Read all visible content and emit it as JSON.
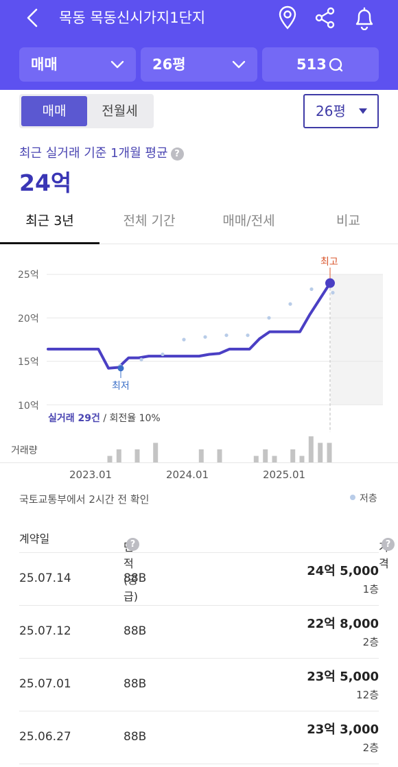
{
  "header": {
    "title": "목동 목동신시가지1단지",
    "filters": [
      {
        "label": "매매"
      },
      {
        "label": "26평"
      },
      {
        "label": "513"
      }
    ]
  },
  "toggle": {
    "active": "매매",
    "inactive": "전월세"
  },
  "size_select": "26평",
  "summary": {
    "label": "최근 실거래 기준 1개월 평균",
    "value": "24억"
  },
  "tabs": [
    "최근 3년",
    "전체 기간",
    "매매/전세",
    "비교"
  ],
  "chart_data": {
    "type": "line",
    "y_ticks": [
      "25억",
      "20억",
      "15억",
      "10억"
    ],
    "ylim": [
      10,
      25
    ],
    "x_ticks": [
      "2023.01",
      "2024.01",
      "2025.01"
    ],
    "markers": {
      "high_label": "최고",
      "low_label": "최저"
    },
    "note_prefix": "실거래 29건",
    "note_suffix": "/ 회전율 10%",
    "volume_label": "거래량",
    "series": [
      {
        "values": [
          16.4,
          16.4,
          16.4,
          16.4,
          16.4,
          16.4,
          14.2,
          14.3,
          15.4,
          15.4,
          15.6,
          15.6,
          15.6,
          15.6,
          15.6,
          15.6,
          15.8,
          15.9,
          16.4,
          16.4,
          16.4,
          17.6,
          18.4,
          18.4,
          18.4,
          18.4,
          20.4,
          22.2,
          24.0
        ]
      }
    ],
    "points": [
      14.5,
      15.2,
      15.8,
      17.5,
      17.8,
      18.0,
      18.0,
      20.0,
      21.6,
      23.3,
      22.9
    ],
    "volume": [
      1,
      2,
      0,
      2,
      0,
      3,
      0,
      0,
      0,
      0,
      2,
      0,
      2,
      0,
      0,
      0,
      1,
      2,
      1,
      0,
      2,
      1,
      4,
      3,
      3
    ]
  },
  "confirm_text": "국토교통부에서 2시간 전 확인",
  "legend": "저층",
  "table": {
    "headers": {
      "date": "계약일",
      "area": "면적(공급)",
      "price": "가격"
    },
    "rows": [
      {
        "date": "25.07.14",
        "area": "88B",
        "price": "24억 5,000",
        "floor": "1층"
      },
      {
        "date": "25.07.12",
        "area": "88B",
        "price": "22억 8,000",
        "floor": "2층"
      },
      {
        "date": "25.07.01",
        "area": "88B",
        "price": "23억 5,000",
        "floor": "12층"
      },
      {
        "date": "25.06.27",
        "area": "88B",
        "price": "23억 3,000",
        "floor": "2층"
      }
    ]
  }
}
